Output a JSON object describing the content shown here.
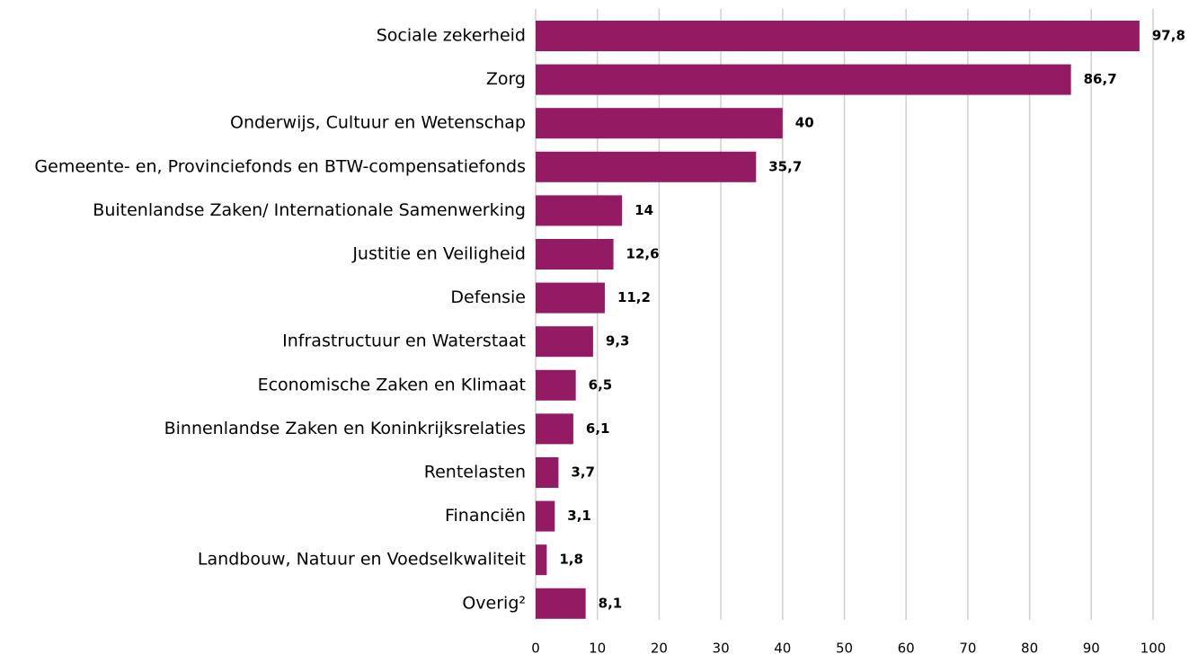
{
  "chart_data": {
    "type": "bar",
    "orientation": "horizontal",
    "categories": [
      "Sociale zekerheid",
      "Zorg",
      "Onderwijs, Cultuur en Wetenschap",
      "Gemeente- en, Provinciefonds en BTW-compensatiefonds",
      "Buitenlandse Zaken/ Internationale Samenwerking",
      "Justitie en Veiligheid",
      "Defensie",
      "Infrastructuur en Waterstaat",
      "Economische Zaken en Klimaat",
      "Binnenlandse Zaken en Koninkrijksrelaties",
      "Rentelasten",
      "Financiën",
      "Landbouw, Natuur en Voedselkwaliteit",
      "Overig²"
    ],
    "values": [
      97.8,
      86.7,
      40,
      35.7,
      14,
      12.6,
      11.2,
      9.3,
      6.5,
      6.1,
      3.7,
      3.1,
      1.8,
      8.1
    ],
    "value_labels": [
      "97,8",
      "86,7",
      "40",
      "35,7",
      "14",
      "12,6",
      "11,2",
      "9,3",
      "6,5",
      "6,1",
      "3,7",
      "3,1",
      "1,8",
      "8,1"
    ],
    "color": "#931a63",
    "xlim": [
      0,
      100
    ],
    "xticks": [
      0,
      10,
      20,
      30,
      40,
      50,
      60,
      70,
      80,
      90,
      100
    ],
    "grid": true
  }
}
